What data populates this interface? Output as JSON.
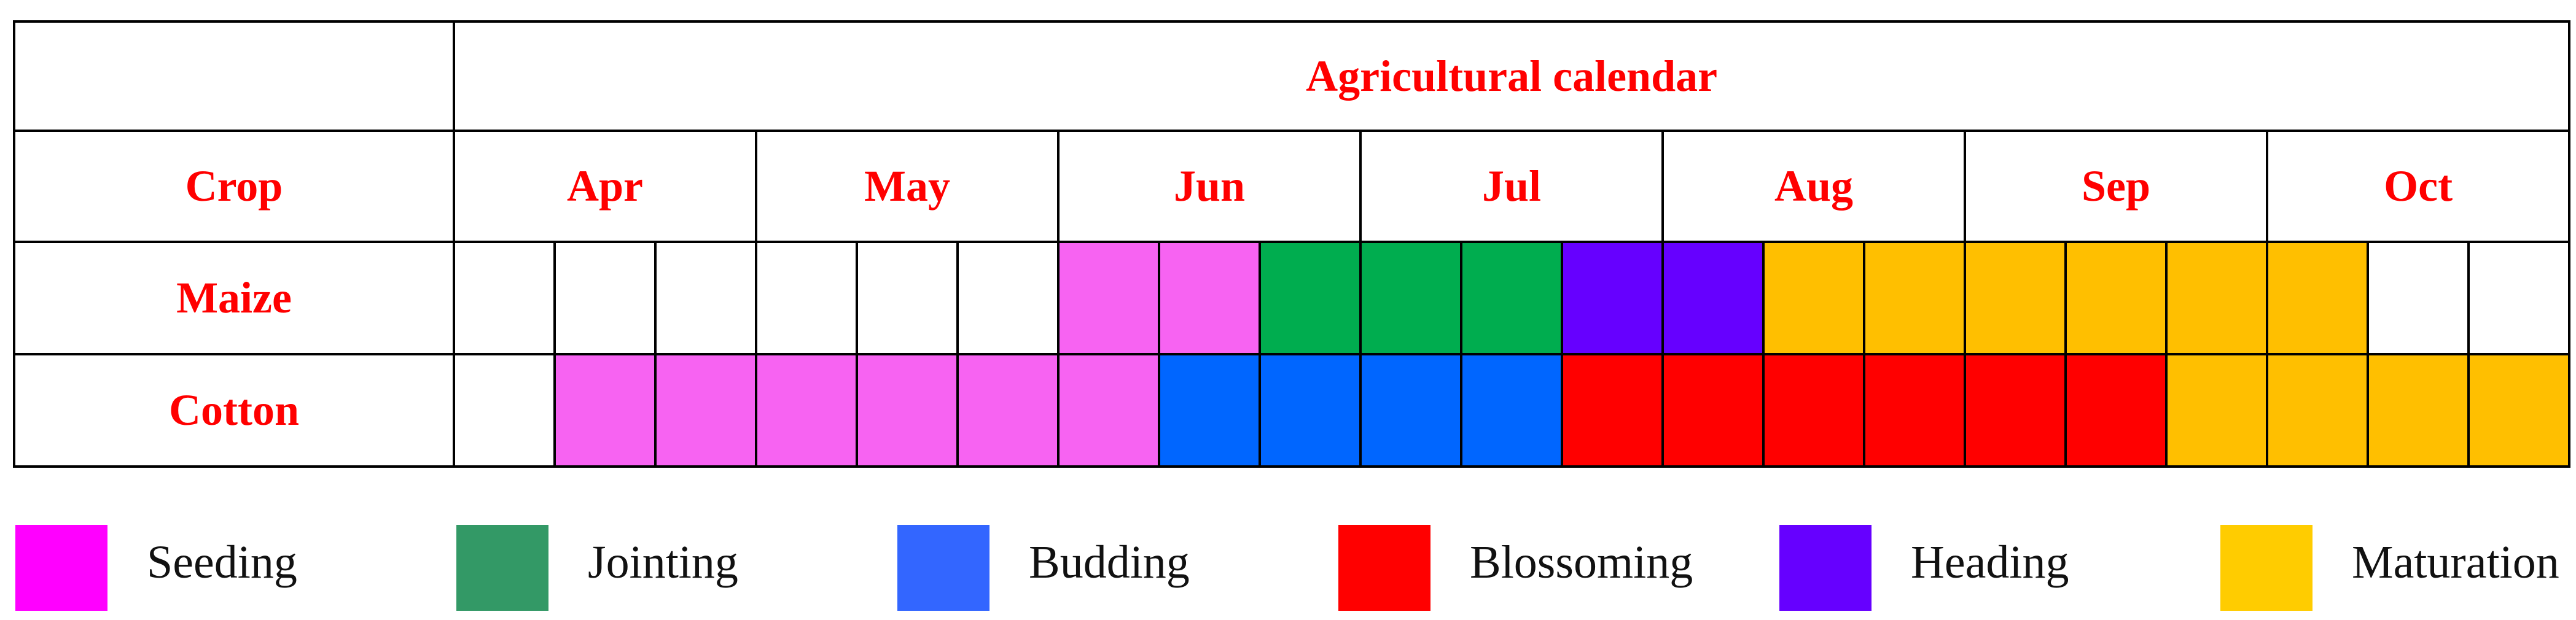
{
  "title": "Agricultural calendar",
  "crop_header": "Crop",
  "months": [
    "Apr",
    "May",
    "Jun",
    "Jul",
    "Aug",
    "Sep",
    "Oct"
  ],
  "stages": {
    "seeding": {
      "label": "Seeding",
      "row_color": "#f763f2",
      "legend_color": "#ff00ff"
    },
    "jointing": {
      "label": "Jointing",
      "row_color": "#00ad4f",
      "legend_color": "#339966"
    },
    "budding": {
      "label": "Budding",
      "row_color": "#0066ff",
      "legend_color": "#3366ff"
    },
    "blossoming": {
      "label": "Blossoming",
      "row_color": "#ff0000",
      "legend_color": "#ff0000"
    },
    "heading": {
      "label": "Heading",
      "row_color": "#6600ff",
      "legend_color": "#6600ff"
    },
    "maturation": {
      "label": "Maturation",
      "row_color": "#ffbf00",
      "legend_color": "#ffcc00"
    }
  },
  "legend": [
    "seeding",
    "jointing",
    "budding",
    "blossoming",
    "heading",
    "maturation"
  ],
  "crops": [
    {
      "name": "Maize",
      "cells": [
        "",
        "",
        "",
        "",
        "",
        "",
        "seeding",
        "seeding",
        "jointing",
        "jointing",
        "jointing",
        "heading",
        "heading",
        "maturation",
        "maturation",
        "maturation",
        "maturation",
        "maturation",
        "maturation",
        "",
        ""
      ]
    },
    {
      "name": "Cotton",
      "cells": [
        "",
        "seeding",
        "seeding",
        "seeding",
        "seeding",
        "seeding",
        "seeding",
        "budding",
        "budding",
        "budding",
        "budding",
        "blossoming",
        "blossoming",
        "blossoming",
        "blossoming",
        "blossoming",
        "blossoming",
        "maturation",
        "maturation",
        "maturation",
        "maturation"
      ]
    }
  ]
}
